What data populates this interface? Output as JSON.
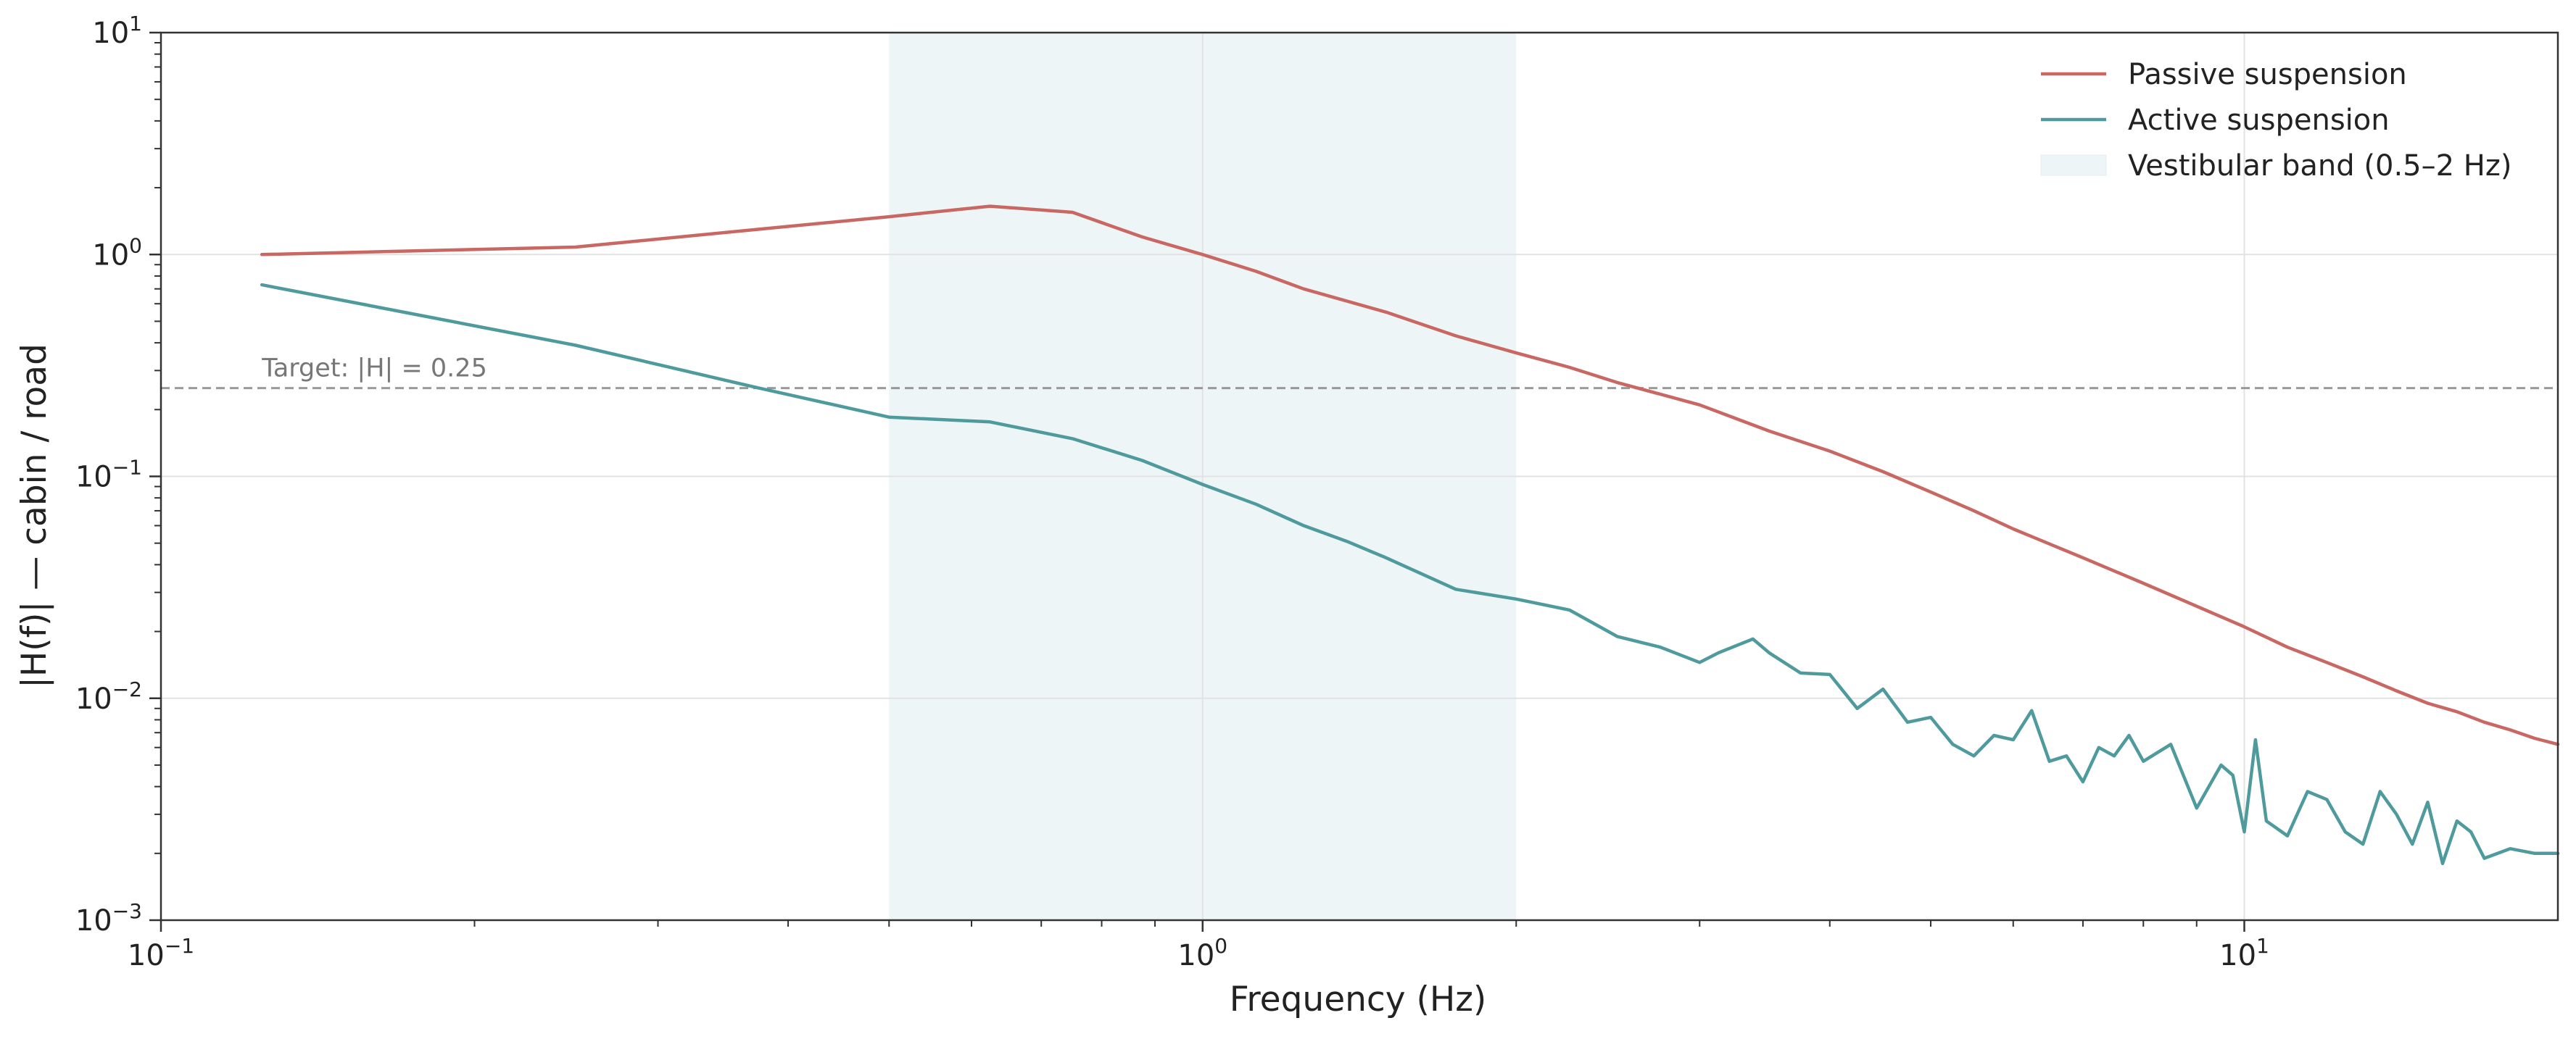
{
  "chart_data": {
    "type": "line",
    "title": "",
    "xlabel": "Frequency (Hz)",
    "ylabel": "|H(f)| — cabin / road",
    "x_scale": "log",
    "y_scale": "log",
    "xlim": [
      0.1,
      20
    ],
    "ylim": [
      0.001,
      10
    ],
    "x_ticks": [
      {
        "value": 0.1,
        "base": "10",
        "exp": "−1"
      },
      {
        "value": 1,
        "base": "10",
        "exp": "0"
      },
      {
        "value": 10,
        "base": "10",
        "exp": "1"
      }
    ],
    "y_ticks": [
      {
        "value": 0.001,
        "base": "10",
        "exp": "−3"
      },
      {
        "value": 0.01,
        "base": "10",
        "exp": "−2"
      },
      {
        "value": 0.1,
        "base": "10",
        "exp": "−1"
      },
      {
        "value": 1,
        "base": "10",
        "exp": "0"
      },
      {
        "value": 10,
        "base": "10",
        "exp": "1"
      }
    ],
    "grid": true,
    "legend_position": "top-right",
    "band": {
      "label": "Vestibular band (0.5–2 Hz)",
      "x_start": 0.5,
      "x_end": 2,
      "color": "#eef5f7"
    },
    "reference_line": {
      "y": 0.25,
      "label": "Target: |H| = 0.25",
      "color": "#999999"
    },
    "series": [
      {
        "name": "Passive suspension",
        "color": "#c96763",
        "x": [
          0.125,
          0.25,
          0.375,
          0.5,
          0.625,
          0.75,
          0.875,
          1.0,
          1.125,
          1.25,
          1.5,
          1.75,
          2.0,
          2.25,
          2.5,
          3.0,
          3.5,
          4.0,
          4.5,
          5.0,
          5.5,
          6.0,
          7.0,
          8.0,
          9.0,
          10.0,
          11.0,
          12.0,
          13.0,
          14.0,
          15.0,
          16.0,
          17.0,
          18.0,
          19.0,
          20.0
        ],
        "y": [
          1.0,
          1.08,
          1.3,
          1.48,
          1.65,
          1.55,
          1.2,
          1.0,
          0.84,
          0.7,
          0.55,
          0.43,
          0.36,
          0.31,
          0.265,
          0.21,
          0.16,
          0.13,
          0.105,
          0.085,
          0.07,
          0.058,
          0.043,
          0.033,
          0.026,
          0.021,
          0.017,
          0.0145,
          0.0125,
          0.0108,
          0.0095,
          0.0087,
          0.0078,
          0.0072,
          0.0066,
          0.0062
        ]
      },
      {
        "name": "Active suspension",
        "color": "#4e9a9c",
        "x": [
          0.125,
          0.25,
          0.375,
          0.5,
          0.625,
          0.75,
          0.875,
          1.0,
          1.125,
          1.25,
          1.375,
          1.5,
          1.75,
          2.0,
          2.25,
          2.5,
          2.75,
          3.0,
          3.125,
          3.375,
          3.5,
          3.75,
          4.0,
          4.25,
          4.5,
          4.75,
          5.0,
          5.25,
          5.5,
          5.75,
          6.0,
          6.25,
          6.5,
          6.75,
          7.0,
          7.25,
          7.5,
          7.75,
          8.0,
          8.5,
          9.0,
          9.5,
          9.75,
          10.0,
          10.25,
          10.5,
          11.0,
          11.5,
          12.0,
          12.5,
          13.0,
          13.5,
          14.0,
          14.5,
          15.0,
          15.5,
          16.0,
          16.5,
          17.0,
          18.0,
          19.0,
          20.0
        ],
        "y": [
          0.73,
          0.39,
          0.25,
          0.185,
          0.176,
          0.148,
          0.118,
          0.092,
          0.075,
          0.06,
          0.051,
          0.043,
          0.031,
          0.028,
          0.025,
          0.019,
          0.017,
          0.0145,
          0.016,
          0.0185,
          0.016,
          0.013,
          0.0128,
          0.009,
          0.011,
          0.0078,
          0.0082,
          0.0062,
          0.0055,
          0.0068,
          0.0065,
          0.0088,
          0.0052,
          0.0055,
          0.0042,
          0.006,
          0.0055,
          0.0068,
          0.0052,
          0.0062,
          0.0032,
          0.005,
          0.0045,
          0.0025,
          0.0065,
          0.0028,
          0.0024,
          0.0038,
          0.0035,
          0.0025,
          0.0022,
          0.0038,
          0.003,
          0.0022,
          0.0034,
          0.0018,
          0.0028,
          0.0025,
          0.0019,
          0.0021,
          0.002,
          0.002
        ]
      }
    ]
  }
}
